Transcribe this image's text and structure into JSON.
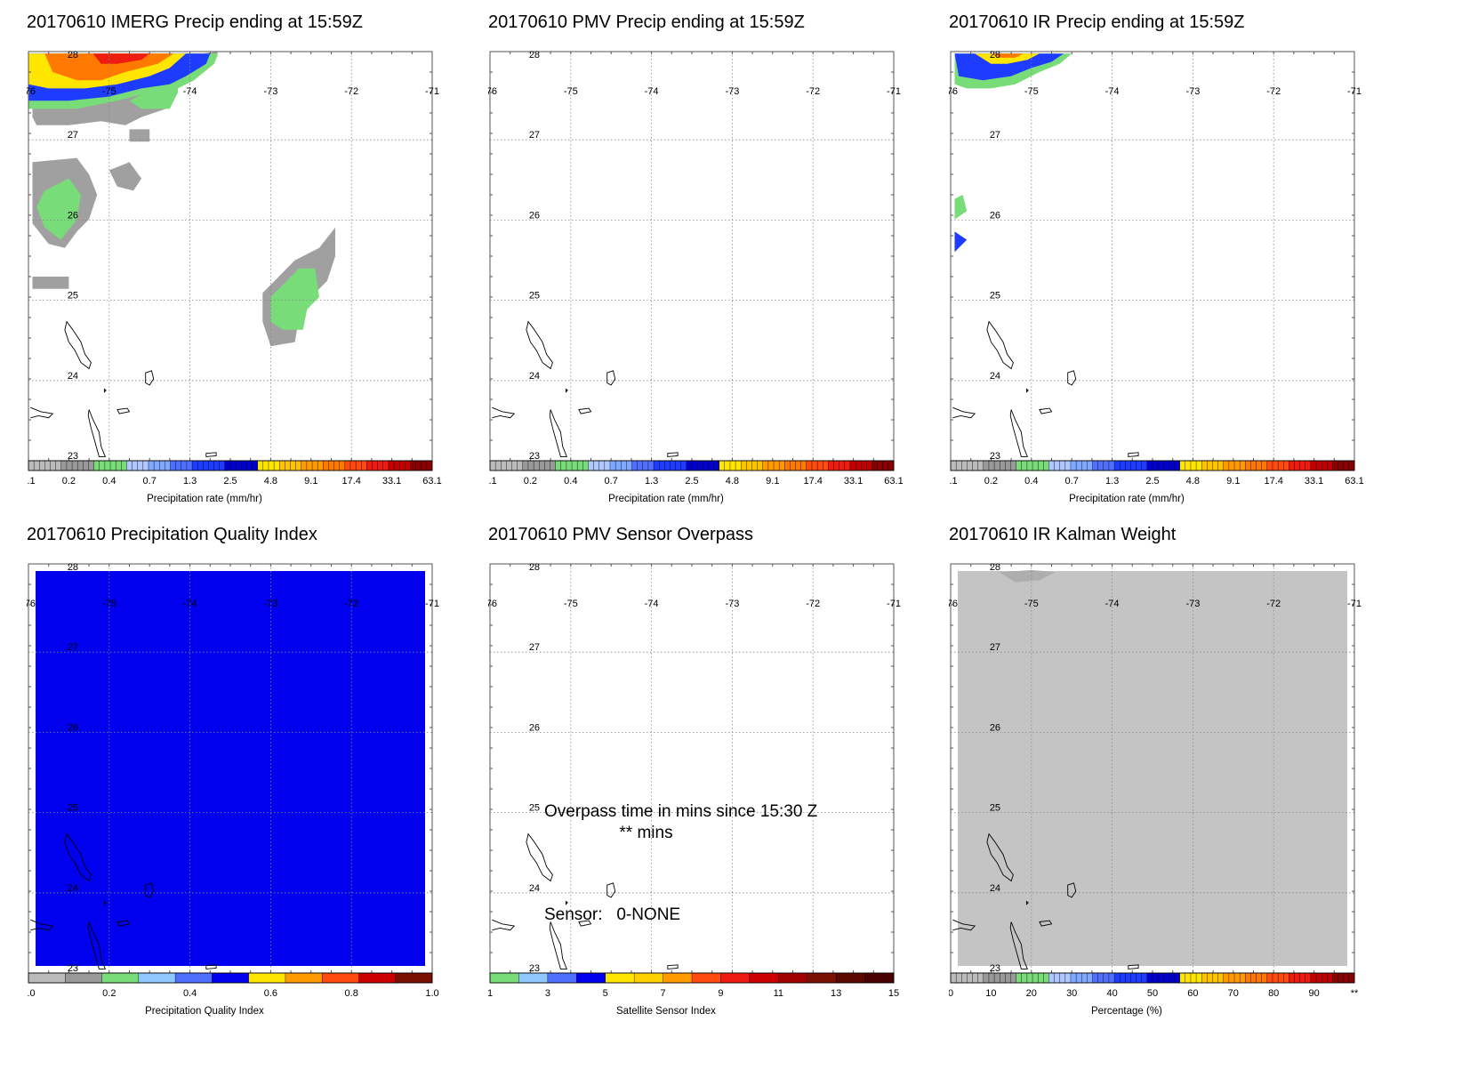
{
  "panels": [
    {
      "title": "20170610 IMERG Precip ending at 15:59Z",
      "fill": "imerg",
      "colorbar": {
        "kind": "precip",
        "ticks": [
          "0.1",
          "0.2",
          "0.4",
          "0.7",
          "1.3",
          "2.5",
          "4.8",
          "9.1",
          "17.4",
          "33.1",
          "63.1"
        ],
        "label": "Precipitation rate (mm/hr)"
      }
    },
    {
      "title": "20170610 PMV Precip ending at 15:59Z",
      "fill": "none",
      "colorbar": {
        "kind": "precip",
        "ticks": [
          "0.1",
          "0.2",
          "0.4",
          "0.7",
          "1.3",
          "2.5",
          "4.8",
          "9.1",
          "17.4",
          "33.1",
          "63.1"
        ],
        "label": "Precipitation rate (mm/hr)"
      }
    },
    {
      "title": "20170610 IR Precip ending at 15:59Z",
      "fill": "ir",
      "colorbar": {
        "kind": "precip",
        "ticks": [
          "0.1",
          "0.2",
          "0.4",
          "0.7",
          "1.3",
          "2.5",
          "4.8",
          "9.1",
          "17.4",
          "33.1",
          "63.1"
        ],
        "label": "Precipitation rate (mm/hr)"
      }
    },
    {
      "title": "20170610 Precipitation Quality Index",
      "fill": "quality",
      "colorbar": {
        "kind": "quality",
        "ticks": [
          "0.0",
          "0.2",
          "0.4",
          "0.6",
          "0.8",
          "1.0"
        ],
        "label": "Precipitation Quality Index"
      }
    },
    {
      "title": "20170610 PMV Sensor Overpass",
      "fill": "none",
      "colorbar": {
        "kind": "sensor",
        "ticks": [
          "1",
          "3",
          "5",
          "7",
          "9",
          "11",
          "13",
          "15"
        ],
        "label": "Satellite Sensor Index"
      },
      "annotations": {
        "overpass_line1": "Overpass time in mins since 15:30 Z",
        "overpass_line2": "** mins",
        "sensor": "Sensor:   0-NONE"
      }
    },
    {
      "title": "20170610 IR Kalman Weight",
      "fill": "kalman",
      "colorbar": {
        "kind": "percent",
        "ticks": [
          "0",
          "10",
          "20",
          "30",
          "40",
          "50",
          "60",
          "70",
          "80",
          "90",
          "**"
        ],
        "label": "Percentage (%)"
      }
    }
  ],
  "map": {
    "lon_ticks": [
      "-76",
      "-75",
      "-74",
      "-73",
      "-72",
      "-71"
    ],
    "lat_ticks": [
      "28",
      "27",
      "26",
      "25",
      "24",
      "23"
    ],
    "lon_range": [
      -76,
      -71
    ],
    "lat_range": [
      23,
      28
    ]
  },
  "colors": {
    "quality_fill": "#0000ee",
    "kalman_fill": "#c4c4c4",
    "grid": "#888888",
    "precip_light": "#a0a0a0",
    "precip_green": "#78dc78",
    "precip_blue": "#1e3cff",
    "precip_yellow": "#ffe600",
    "precip_orange": "#ff7800",
    "precip_red": "#ee1c10"
  }
}
